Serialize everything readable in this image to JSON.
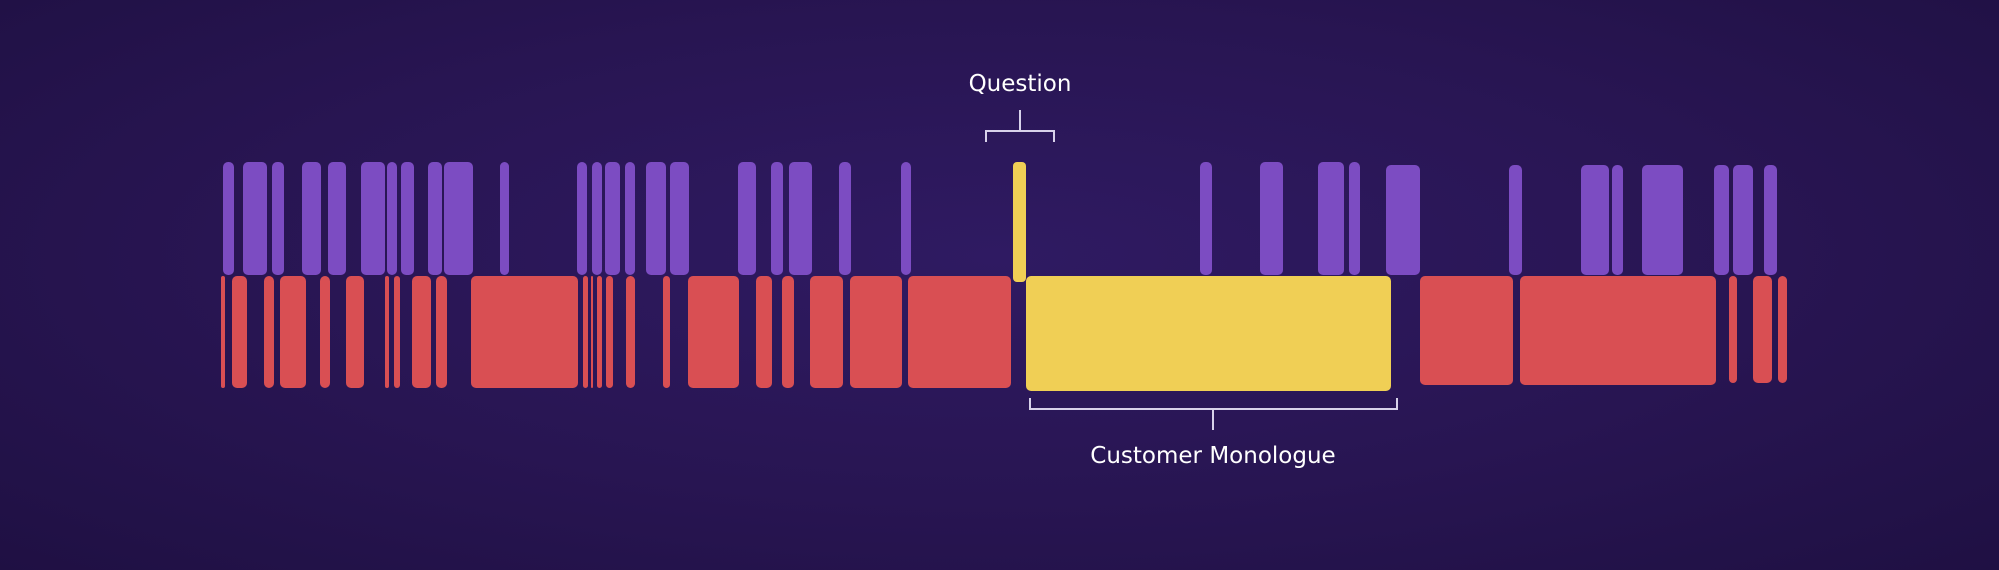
{
  "colors": {
    "background": "#281552",
    "agent_speech": "#7c4cc2",
    "customer_speech": "#d94f53",
    "highlight": "#f0cf55",
    "annotation": "#d8d2ea"
  },
  "annotations": {
    "question": "Question",
    "monologue": "Customer Monologue"
  }
}
